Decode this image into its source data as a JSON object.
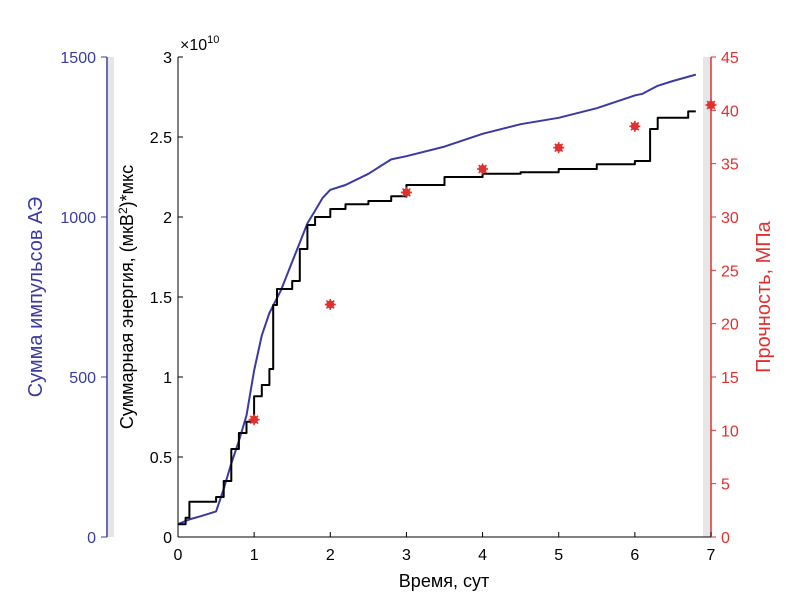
{
  "chart_data": {
    "type": "line",
    "title": "",
    "xlabel": "Время, сут",
    "x_ticks": [
      "0",
      "1",
      "2",
      "3",
      "4",
      "5",
      "6",
      "7"
    ],
    "xlim": [
      0,
      7
    ],
    "grid": false,
    "legend": "none",
    "axes": {
      "pulses": {
        "label": "Сумма импульсов АЭ",
        "ticks": [
          "0",
          "500",
          "1000",
          "1500"
        ],
        "ylim": [
          0,
          1500
        ],
        "color": "#3a3aa0"
      },
      "energy": {
        "label": "Суммарная энергия, (мкВ",
        "label_sup": "2",
        "label_tail": ")*мкс",
        "multiplier_base": "×10",
        "multiplier_exp": "10",
        "ticks": [
          "0",
          "0.5",
          "1",
          "1.5",
          "2",
          "2.5",
          "3"
        ],
        "ylim": [
          0,
          3
        ],
        "color": "#000000"
      },
      "strength": {
        "label": "Прочность, МПа",
        "ticks": [
          "0",
          "5",
          "10",
          "15",
          "20",
          "25",
          "30",
          "35",
          "40",
          "45"
        ],
        "ylim": [
          0,
          45
        ],
        "color": "#e03030"
      }
    },
    "series": [
      {
        "axis": "pulses",
        "type": "line",
        "color": "#3a3aa0",
        "points": [
          [
            0,
            40
          ],
          [
            0.15,
            55
          ],
          [
            0.3,
            65
          ],
          [
            0.5,
            80
          ],
          [
            0.6,
            150
          ],
          [
            0.7,
            230
          ],
          [
            0.8,
            300
          ],
          [
            0.9,
            380
          ],
          [
            1.0,
            520
          ],
          [
            1.1,
            630
          ],
          [
            1.2,
            700
          ],
          [
            1.35,
            770
          ],
          [
            1.5,
            860
          ],
          [
            1.6,
            920
          ],
          [
            1.7,
            980
          ],
          [
            1.8,
            1020
          ],
          [
            1.9,
            1060
          ],
          [
            2.0,
            1085
          ],
          [
            2.2,
            1100
          ],
          [
            2.5,
            1135
          ],
          [
            2.8,
            1180
          ],
          [
            3.0,
            1190
          ],
          [
            3.5,
            1220
          ],
          [
            4.0,
            1260
          ],
          [
            4.5,
            1290
          ],
          [
            5.0,
            1310
          ],
          [
            5.5,
            1340
          ],
          [
            6.0,
            1380
          ],
          [
            6.1,
            1385
          ],
          [
            6.3,
            1410
          ],
          [
            6.5,
            1425
          ],
          [
            6.8,
            1445
          ]
        ]
      },
      {
        "axis": "energy",
        "type": "step",
        "color": "#000000",
        "points": [
          [
            0,
            0.08
          ],
          [
            0.1,
            0.12
          ],
          [
            0.15,
            0.22
          ],
          [
            0.5,
            0.25
          ],
          [
            0.6,
            0.35
          ],
          [
            0.7,
            0.55
          ],
          [
            0.8,
            0.65
          ],
          [
            0.9,
            0.72
          ],
          [
            1.0,
            0.88
          ],
          [
            1.1,
            0.95
          ],
          [
            1.2,
            1.05
          ],
          [
            1.25,
            1.45
          ],
          [
            1.3,
            1.55
          ],
          [
            1.5,
            1.6
          ],
          [
            1.6,
            1.8
          ],
          [
            1.7,
            1.95
          ],
          [
            1.8,
            2.0
          ],
          [
            2.0,
            2.05
          ],
          [
            2.2,
            2.08
          ],
          [
            2.5,
            2.1
          ],
          [
            2.8,
            2.13
          ],
          [
            3.0,
            2.2
          ],
          [
            3.5,
            2.25
          ],
          [
            4.0,
            2.27
          ],
          [
            4.5,
            2.28
          ],
          [
            5.0,
            2.3
          ],
          [
            5.5,
            2.33
          ],
          [
            6.0,
            2.35
          ],
          [
            6.1,
            2.35
          ],
          [
            6.2,
            2.55
          ],
          [
            6.3,
            2.62
          ],
          [
            6.6,
            2.62
          ],
          [
            6.7,
            2.66
          ],
          [
            6.8,
            2.66
          ]
        ]
      },
      {
        "axis": "strength",
        "type": "scatter",
        "color": "#e03030",
        "points": [
          [
            1,
            11
          ],
          [
            2,
            21.8
          ],
          [
            3,
            32.3
          ],
          [
            4,
            34.5
          ],
          [
            5,
            36.5
          ],
          [
            6,
            38.5
          ],
          [
            7,
            40.5
          ]
        ]
      }
    ]
  }
}
